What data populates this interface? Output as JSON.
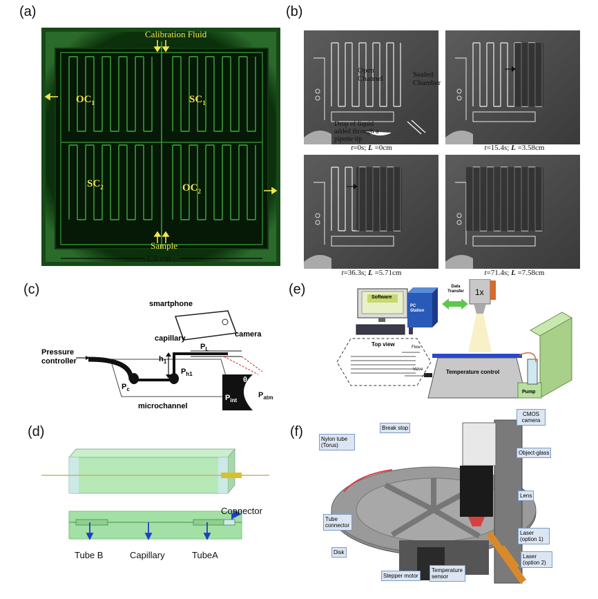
{
  "panels": {
    "a": {
      "label": "(a)",
      "top_label": "Calibration Fluid",
      "bottom_label": "Sample",
      "scale_label": "1.5 cm",
      "regions": {
        "oc1": "OC",
        "oc1_sub": "1",
        "sc1": "SC",
        "sc1_sub": "1",
        "sc2": "SC",
        "sc2_sub": "2",
        "oc2": "OC",
        "oc2_sub": "2"
      }
    },
    "b": {
      "label": "(b)",
      "open_channel": "Open Channel",
      "sealed_chamber": "Sealed Chamber",
      "drop_note": "Drop of liquid added through a pipette tip",
      "captions": [
        {
          "t_sym": "t",
          "t_val": "=0s; ",
          "l_sym": "L",
          "l_val": " =0cm"
        },
        {
          "t_sym": "t",
          "t_val": "=15.4s; ",
          "l_sym": "L",
          "l_val": " =3.58cm"
        },
        {
          "t_sym": "t",
          "t_val": "=36.3s; ",
          "l_sym": "L",
          "l_val": " =5.71cm"
        },
        {
          "t_sym": "t",
          "t_val": "=71.4s; ",
          "l_sym": "L",
          "l_val": " =7.58cm"
        }
      ]
    },
    "c": {
      "label": "(c)",
      "smartphone": "smartphone",
      "camera": "camera",
      "capillary": "capillary",
      "pressure_controller": "Pressure controller",
      "microchannel": "microchannel",
      "h1": "h",
      "h1_sub": "1",
      "pc": "P",
      "pc_sub": "c",
      "ph1": "P",
      "ph1_sub": "h1",
      "pl": "P",
      "pl_sub": "L",
      "pint": "P",
      "pint_sub": "int",
      "patm": "P",
      "patm_sub": "atm",
      "theta": "θ"
    },
    "d": {
      "label": "(d)",
      "connector": "Connector",
      "tube_b": "Tube B",
      "capillary": "Capillary",
      "tube_a": "TubeA"
    },
    "e": {
      "label": "(e)",
      "software": "Software",
      "pc_station": "PC Station",
      "data_transfer": "Data Transfer",
      "objective": "1x",
      "top_view": "Top view",
      "flow": "Flow",
      "valve": "Valve",
      "temperature_control": "Temperature control",
      "pump": "Pump"
    },
    "f": {
      "label": "(f)",
      "cmos_camera": "CMOS camera",
      "break_stop": "Break stop",
      "nylon_tube": "Nylon tube (Torus)",
      "object_glass": "Object-glass",
      "lens": "Lens",
      "tube_connector": "Tube connector",
      "laser1": "Laser (option 1)",
      "laser2": "Laser (option 2)",
      "disk": "Disk",
      "stepper_motor": "Stepper motor",
      "temperature_sensor": "Temperature sensor"
    }
  }
}
